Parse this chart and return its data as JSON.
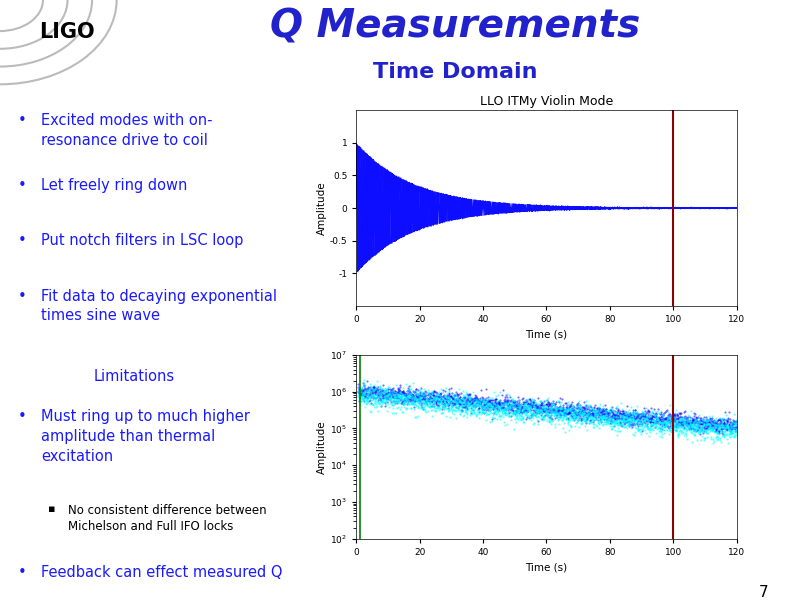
{
  "title": "Q Measurements",
  "subtitle": "Time Domain",
  "title_color": "#2222cc",
  "subtitle_color": "#2222cc",
  "bg_color": "#ffffff",
  "divider_color": "#cc0066",
  "ligo_color": "#000000",
  "bullet_color": "#1a1aff",
  "bullet_points_top": [
    "Excited modes with on-\nresonance drive to coil",
    "Let freely ring down",
    "Put notch filters in LSC loop",
    "Fit data to decaying exponential\ntimes sine wave"
  ],
  "limitations_title": "Limitations",
  "limitations_color": "#1a1aff",
  "bullet_points_bottom": [
    "Must ring up to much higher\namplitude than thermal\nexcitation"
  ],
  "sub_bullet": "No consistent difference between\nMichelson and Full IFO locks",
  "last_bullet": "Feedback can effect measured Q",
  "page_number": "7",
  "plot1_title": "LLO ITMy Violin Mode",
  "plot1_xlabel": "Time (s)",
  "plot1_ylabel": "Amplitude",
  "plot1_xticks": [
    0,
    20,
    40,
    60,
    80,
    100,
    120
  ],
  "plot1_yticks": [
    -1,
    -0.5,
    0,
    0.5,
    1
  ],
  "plot1_ylim": [
    -1.5,
    1.5
  ],
  "plot1_xlim": [
    0,
    120
  ],
  "plot2_xlabel": "Time (s)",
  "plot2_ylabel": "Amplitude",
  "plot2_xticks": [
    0,
    20,
    40,
    60,
    80,
    100,
    120
  ],
  "plot2_xlim": [
    0,
    120
  ]
}
